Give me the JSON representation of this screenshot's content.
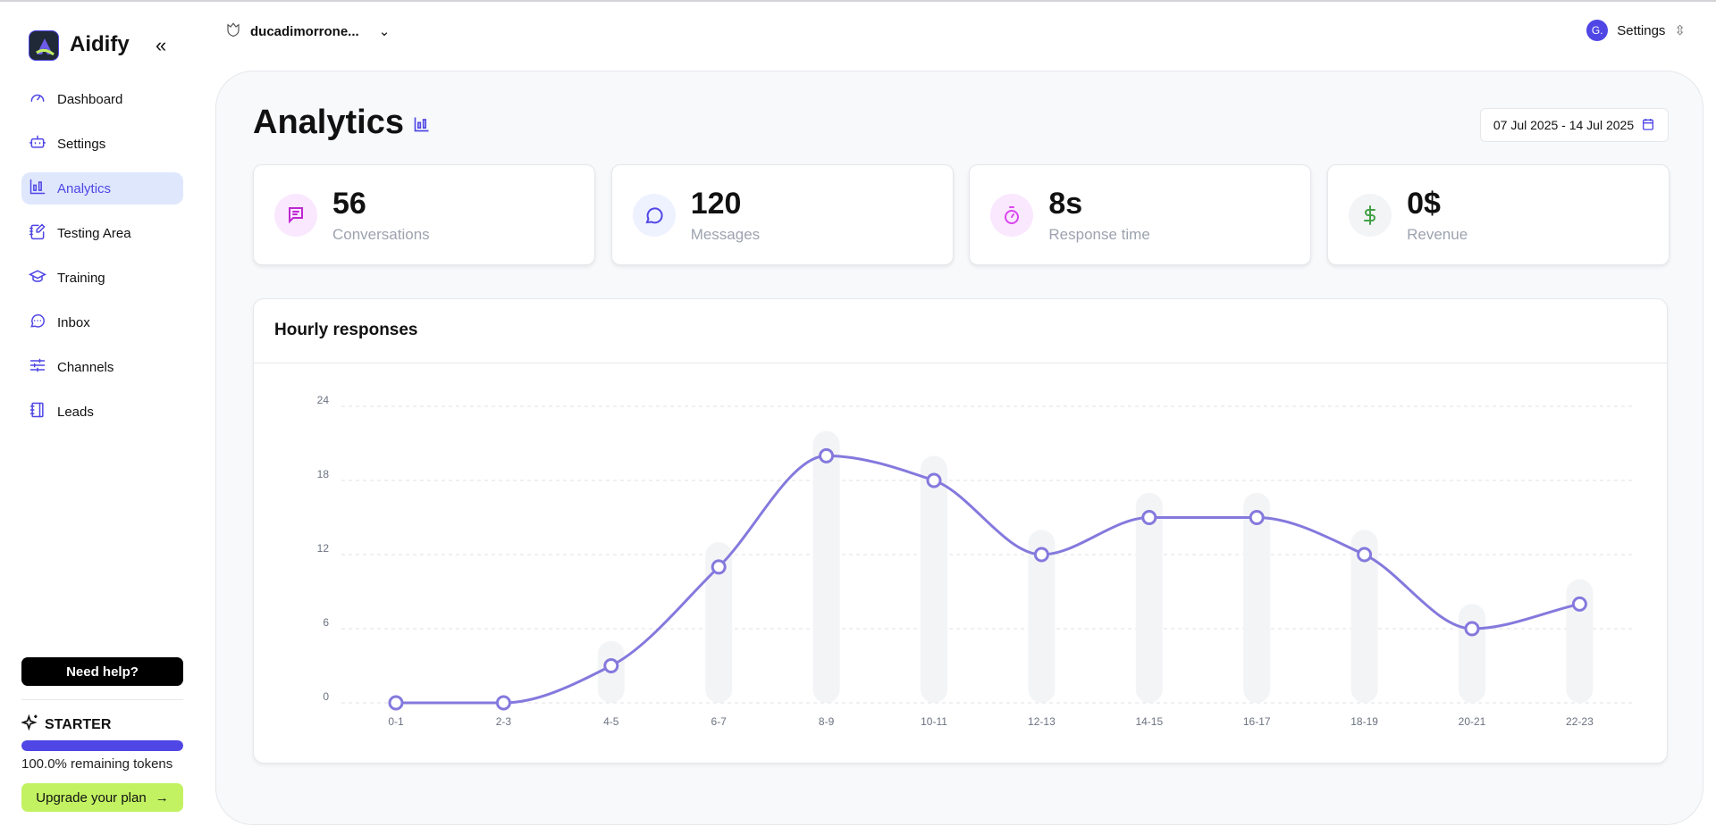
{
  "brand": {
    "name": "Aidify"
  },
  "sidebar": {
    "items": [
      {
        "label": "Dashboard",
        "icon": "gauge-icon"
      },
      {
        "label": "Settings",
        "icon": "robot-icon"
      },
      {
        "label": "Analytics",
        "icon": "bar-chart-icon",
        "active": true
      },
      {
        "label": "Testing Area",
        "icon": "notebook-pen-icon"
      },
      {
        "label": "Training",
        "icon": "graduation-cap-icon"
      },
      {
        "label": "Inbox",
        "icon": "message-dots-icon"
      },
      {
        "label": "Channels",
        "icon": "sliders-icon"
      },
      {
        "label": "Leads",
        "icon": "book-icon"
      }
    ],
    "help_label": "Need help?",
    "plan": "STARTER",
    "tokens_percent": 100,
    "tokens_label": "100.0% remaining tokens",
    "upgrade_label": "Upgrade your plan"
  },
  "header": {
    "workspace": "ducadimorrone...",
    "avatar_initial": "G.",
    "user_menu": "Settings"
  },
  "main": {
    "title": "Analytics",
    "date_range": "07 Jul 2025 - 14 Jul 2025",
    "stats": [
      {
        "value": "56",
        "label": "Conversations",
        "color": "#c026d3",
        "bg": "#fae8ff"
      },
      {
        "value": "120",
        "label": "Messages",
        "color": "#4f46e5",
        "bg": "#eef2ff"
      },
      {
        "value": "8s",
        "label": "Response time",
        "color": "#d946ef",
        "bg": "#fae8ff"
      },
      {
        "value": "0$",
        "label": "Revenue",
        "color": "#43a047",
        "bg": "#f3f4f6"
      }
    ],
    "chart_title": "Hourly responses"
  },
  "colors": {
    "accent": "#4f46e5",
    "line": "#8479dd",
    "upgrade": "#c2f262"
  },
  "chart_data": {
    "type": "line",
    "categories": [
      "0-1",
      "2-3",
      "4-5",
      "6-7",
      "8-9",
      "10-11",
      "12-13",
      "14-15",
      "16-17",
      "18-19",
      "20-21",
      "22-23"
    ],
    "values": [
      0,
      0,
      3,
      11,
      20,
      18,
      12,
      15,
      15,
      12,
      6,
      8
    ],
    "yticks": [
      0,
      6,
      12,
      18,
      24
    ],
    "ylim": [
      0,
      24
    ],
    "grid": true,
    "curve": "monotone"
  }
}
